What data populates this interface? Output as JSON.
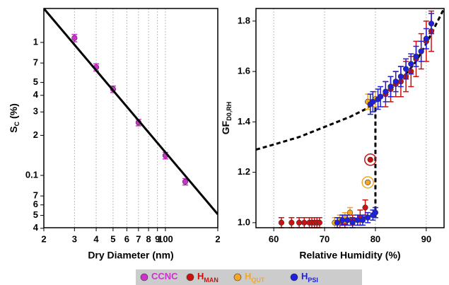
{
  "chart_data": [
    {
      "type": "scatter",
      "xscale": "log",
      "yscale": "log",
      "xgrid": true,
      "x_label": "Dry Diameter (nm)",
      "y_label": {
        "text": "S",
        "sub": "C",
        "tail": " (%)"
      },
      "xlim": [
        20,
        200
      ],
      "ylim": [
        0.0404,
        1.8
      ],
      "xticks": [
        {
          "value": 20,
          "label": "2"
        },
        {
          "value": 30,
          "label": "3"
        },
        {
          "value": 40,
          "label": "4"
        },
        {
          "value": 50,
          "label": "5"
        },
        {
          "value": 60,
          "label": "6"
        },
        {
          "value": 70,
          "label": "7"
        },
        {
          "value": 80,
          "label": "8"
        },
        {
          "value": 90,
          "label": "9"
        },
        100,
        {
          "value": 200,
          "label": "2"
        }
      ],
      "yticks": [
        {
          "value": 0.04,
          "label": "4"
        },
        {
          "value": 0.05,
          "label": "5"
        },
        {
          "value": 0.06,
          "label": "6"
        },
        {
          "value": 0.07,
          "label": "7"
        },
        0.1,
        {
          "value": 0.2,
          "label": "2"
        },
        {
          "value": 0.3,
          "label": "3"
        },
        {
          "value": 0.4,
          "label": "4"
        },
        {
          "value": 0.5,
          "label": "5"
        },
        {
          "value": 0.7,
          "label": "7"
        },
        1
      ],
      "series": [
        {
          "name": "CCNC",
          "color": "#cc33cc",
          "style": "markers",
          "x": [
            30,
            40,
            50,
            70,
            100,
            130
          ],
          "values": [
            1.08,
            0.65,
            0.445,
            0.25,
            0.141,
            0.0896
          ],
          "errors": [
            0.07,
            0.04,
            0.025,
            0.014,
            0.008,
            0.005
          ]
        },
        {
          "color": "#000000",
          "style": "line",
          "x": [
            20,
            200
          ],
          "values": [
            1.8,
            0.051
          ]
        }
      ]
    },
    {
      "type": "scatter",
      "xgrid": true,
      "x_label": "Relative Humidity (%)",
      "y_label": {
        "text": "GF",
        "sub": "D0,RH"
      },
      "xlim": [
        56.5,
        93.5
      ],
      "ylim": [
        0.98,
        1.85
      ],
      "xticks": [
        60,
        70,
        80,
        90
      ],
      "yticks": [
        {
          "value": 1,
          "label": "1.0"
        },
        1.2,
        1.4,
        1.6,
        1.8
      ],
      "series": [
        {
          "color": "#000000",
          "style": "line",
          "dash": true,
          "x": [
            56.5,
            60,
            65,
            70,
            75,
            78,
            80,
            82,
            84,
            86,
            88,
            90,
            92,
            93.5
          ],
          "values": [
            1.29,
            1.31,
            1.34,
            1.38,
            1.42,
            1.45,
            1.48,
            1.51,
            1.55,
            1.59,
            1.64,
            1.71,
            1.79,
            1.85
          ]
        },
        {
          "color": "#000000",
          "style": "line",
          "dash": true,
          "x": [
            80,
            80
          ],
          "values": [
            1.02,
            1.47
          ]
        },
        {
          "color": "#1f1fdd",
          "style": "line",
          "x": [
            72,
            80
          ],
          "values": [
            1.0,
            1.03
          ]
        },
        {
          "name": "H",
          "name_sub": "MAN",
          "color": "#cc1111",
          "style": "markers",
          "circled": [
            14
          ],
          "x": [
            61.5,
            63.5,
            65,
            66,
            67,
            67.5,
            68,
            68.5,
            69,
            73,
            74,
            75.5,
            77,
            78,
            79,
            82,
            83,
            84,
            85,
            86,
            87,
            88,
            89,
            90,
            91
          ],
          "values": [
            1.0,
            1.0,
            1.0,
            1.0,
            1.0,
            1.0,
            1.0,
            1.0,
            1.0,
            1.0,
            1.0,
            1.01,
            1.02,
            1.06,
            1.25,
            1.51,
            1.53,
            1.55,
            1.56,
            1.58,
            1.6,
            1.65,
            1.68,
            1.72,
            1.76
          ],
          "errors": [
            0.02,
            0.02,
            0.02,
            0.02,
            0.02,
            0.02,
            0.02,
            0.02,
            0.02,
            0.02,
            0.02,
            0.02,
            0.03,
            0.03,
            0,
            0.05,
            0.05,
            0.05,
            0.06,
            0.06,
            0.06,
            0.07,
            0.07,
            0.08,
            0.08
          ]
        },
        {
          "name": "H",
          "name_sub": "QUT",
          "color": "#f5a623",
          "style": "markers",
          "circled": [
            4
          ],
          "x": [
            72,
            73,
            74,
            75,
            78.5,
            78.5,
            80
          ],
          "values": [
            1.0,
            1.01,
            1.02,
            1.04,
            1.16,
            1.48,
            1.49
          ],
          "errors": [
            0.02,
            0.02,
            0.02,
            0.02,
            0,
            0.03,
            0.03
          ]
        },
        {
          "name": "H",
          "name_sub": "PSI",
          "color": "#1f1fdd",
          "style": "markers",
          "x": [
            72.5,
            73.5,
            74.5,
            75.5,
            76.5,
            77.5,
            78.5,
            79.5,
            80,
            79,
            79.5,
            80.5,
            81,
            82,
            83,
            84,
            85,
            86,
            87,
            88,
            89,
            90,
            91
          ],
          "values": [
            1.0,
            1.01,
            1.01,
            1.0,
            1.01,
            1.01,
            1.02,
            1.03,
            1.04,
            1.47,
            1.48,
            1.49,
            1.5,
            1.52,
            1.54,
            1.56,
            1.58,
            1.61,
            1.63,
            1.66,
            1.68,
            1.73,
            1.79
          ],
          "errors": [
            0.02,
            0.02,
            0.02,
            0.02,
            0.02,
            0.02,
            0.02,
            0.02,
            0.02,
            0.04,
            0.04,
            0.04,
            0.04,
            0.04,
            0.04,
            0.04,
            0.04,
            0.04,
            0.04,
            0.04,
            0.04,
            0.04,
            0.04
          ]
        }
      ]
    }
  ]
}
